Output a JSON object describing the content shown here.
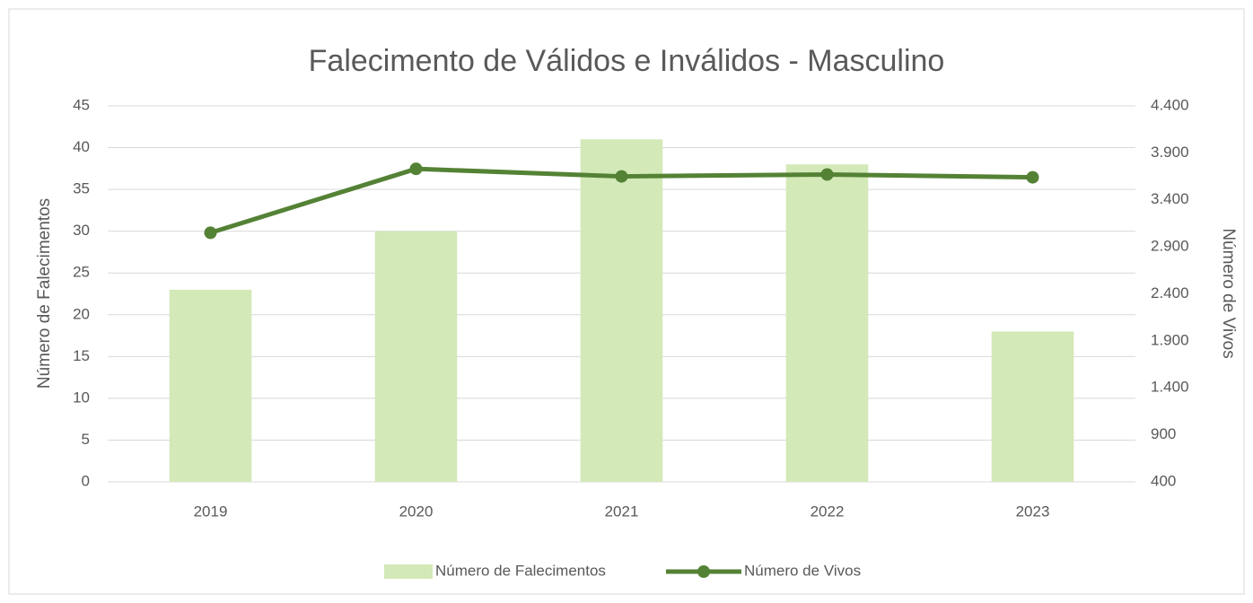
{
  "chart_data": {
    "type": "bar_line",
    "title": "Falecimento de Válidos e Inválidos - Masculino",
    "y_label": "Número de Falecimentos",
    "y2_label": "Número de Vivos",
    "categories": [
      "2019",
      "2020",
      "2021",
      "2022",
      "2023"
    ],
    "series": [
      {
        "name": "Número de Falecimentos",
        "type": "bar",
        "color": "#d3e9b8",
        "values": [
          23,
          30,
          41,
          38,
          18
        ]
      },
      {
        "name": "Número de Vivos",
        "type": "line",
        "axis": "y2",
        "color": "#548235",
        "values": [
          3050,
          3730,
          3650,
          3670,
          3640
        ]
      }
    ],
    "ylim": [
      0,
      45
    ],
    "yticks": [
      0,
      5,
      10,
      15,
      20,
      25,
      30,
      35,
      40,
      45
    ],
    "y2lim": [
      400,
      4400
    ],
    "y2ticks": [
      400,
      900,
      {
        "value": 1400,
        "label": "1.400"
      },
      {
        "value": 1900,
        "label": "1.900"
      },
      {
        "value": 2400,
        "label": "2.400"
      },
      {
        "value": 2900,
        "label": "2.900"
      },
      {
        "value": 3400,
        "label": "3.400"
      },
      {
        "value": 3900,
        "label": "3.900"
      },
      {
        "value": 4400,
        "label": "4.400"
      }
    ],
    "grid": true,
    "legend": "bottom"
  }
}
